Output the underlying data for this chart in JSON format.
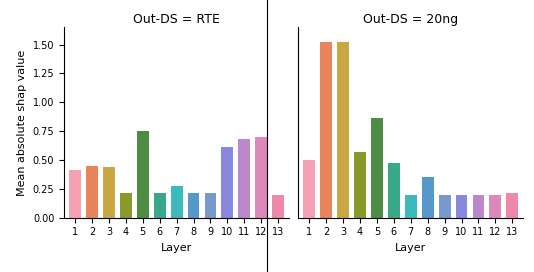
{
  "rte_values": [
    0.41,
    0.45,
    0.44,
    0.21,
    0.75,
    0.21,
    0.27,
    0.21,
    0.21,
    0.61,
    0.68,
    0.7,
    0.2
  ],
  "ng_values": [
    0.5,
    1.52,
    1.52,
    0.57,
    0.86,
    0.47,
    0.2,
    0.35,
    0.2,
    0.2,
    0.2,
    0.2,
    0.21
  ],
  "colors": [
    "#f4a0b5",
    "#e8855a",
    "#c9a844",
    "#8a9a2a",
    "#4d8c42",
    "#38aa8a",
    "#3ababa",
    "#5599cc",
    "#7799cc",
    "#8888dd",
    "#bb88cc",
    "#dd88bb",
    "#f088aa"
  ],
  "title_rte": "Out-DS = RTE",
  "title_ng": "Out-DS = 20ng",
  "ylabel": "Mean absolute shap value",
  "xlabel": "Layer",
  "ylim": [
    0.0,
    1.65
  ],
  "yticks": [
    0.0,
    0.25,
    0.5,
    0.75,
    1.0,
    1.25,
    1.5
  ],
  "layers": [
    1,
    2,
    3,
    4,
    5,
    6,
    7,
    8,
    9,
    10,
    11,
    12,
    13
  ],
  "title_fontsize": 9,
  "label_fontsize": 8,
  "tick_fontsize": 7,
  "bar_width": 0.7,
  "figwidth": 5.34,
  "figheight": 2.72,
  "dpi": 100
}
